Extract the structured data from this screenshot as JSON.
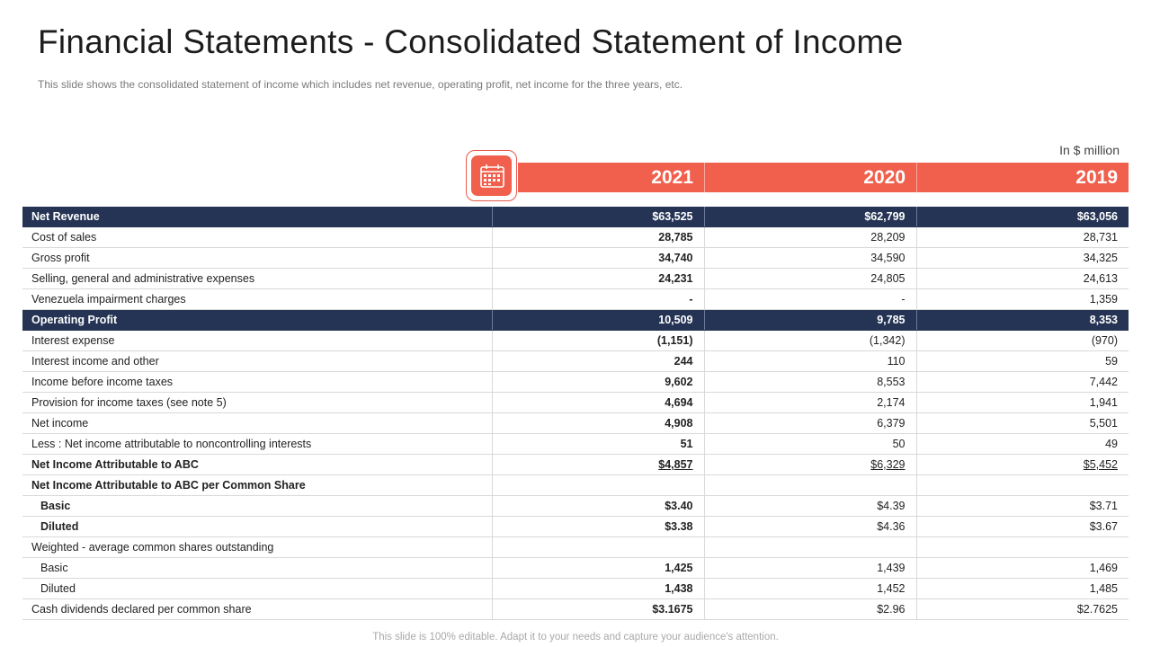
{
  "header": {
    "title": "Financial Statements - Consolidated Statement of Income",
    "subtitle": "This slide shows the consolidated statement of income which includes net revenue,  operating profit, net income for the three years, etc."
  },
  "unit_label": "In $ million",
  "icon": {
    "name": "calendar-icon"
  },
  "colors": {
    "accent": "#f0604d",
    "highlight_row": "#253455"
  },
  "years": [
    "2021",
    "2020",
    "2019"
  ],
  "rows": [
    {
      "label": "Net Revenue",
      "v2021": "$63,525",
      "v2020": "$62,799",
      "v2019": "$63,056"
    },
    {
      "label": "Cost of sales",
      "v2021": "28,785",
      "v2020": "28,209",
      "v2019": "28,731"
    },
    {
      "label": "Gross profit",
      "v2021": "34,740",
      "v2020": "34,590",
      "v2019": "34,325"
    },
    {
      "label": "Selling, general and administrative expenses",
      "v2021": "24,231",
      "v2020": "24,805",
      "v2019": "24,613"
    },
    {
      "label": "Venezuela impairment charges",
      "v2021": "-",
      "v2020": "-",
      "v2019": "1,359"
    },
    {
      "label": "Operating Profit",
      "v2021": "10,509",
      "v2020": "9,785",
      "v2019": "8,353"
    },
    {
      "label": "Interest expense",
      "v2021": "(1,151)",
      "v2020": "(1,342)",
      "v2019": "(970)"
    },
    {
      "label": "Interest income and other",
      "v2021": "244",
      "v2020": "110",
      "v2019": "59"
    },
    {
      "label": "Income before income taxes",
      "v2021": "9,602",
      "v2020": "8,553",
      "v2019": "7,442"
    },
    {
      "label": "Provision for income taxes (see note 5)",
      "v2021": "4,694",
      "v2020": "2,174",
      "v2019": "1,941"
    },
    {
      "label": "Net income",
      "v2021": "4,908",
      "v2020": "6,379",
      "v2019": "5,501"
    },
    {
      "label": "Less : Net income attributable to noncontrolling interests",
      "v2021": "51",
      "v2020": "50",
      "v2019": "49"
    },
    {
      "label": "Net Income Attributable to ABC",
      "v2021": "$4,857",
      "v2020": "$6,329",
      "v2019": "$5,452"
    },
    {
      "label": "Net Income Attributable to ABC  per Common Share",
      "v2021": "",
      "v2020": "",
      "v2019": ""
    },
    {
      "label": "Basic",
      "v2021": "$3.40",
      "v2020": "$4.39",
      "v2019": "$3.71"
    },
    {
      "label": "Diluted",
      "v2021": "$3.38",
      "v2020": "$4.36",
      "v2019": "$3.67"
    },
    {
      "label": "Weighted - average  common shares outstanding",
      "v2021": "",
      "v2020": "",
      "v2019": ""
    },
    {
      "label": "Basic",
      "v2021": "1,425",
      "v2020": "1,439",
      "v2019": "1,469"
    },
    {
      "label": "Diluted",
      "v2021": "1,438",
      "v2020": "1,452",
      "v2019": "1,485"
    },
    {
      "label": "Cash dividends declared per common share",
      "v2021": "$3.1675",
      "v2020": "$2.96",
      "v2019": "$2.7625"
    }
  ],
  "footer": "This slide is 100% editable. Adapt it to your needs and capture your audience's attention."
}
